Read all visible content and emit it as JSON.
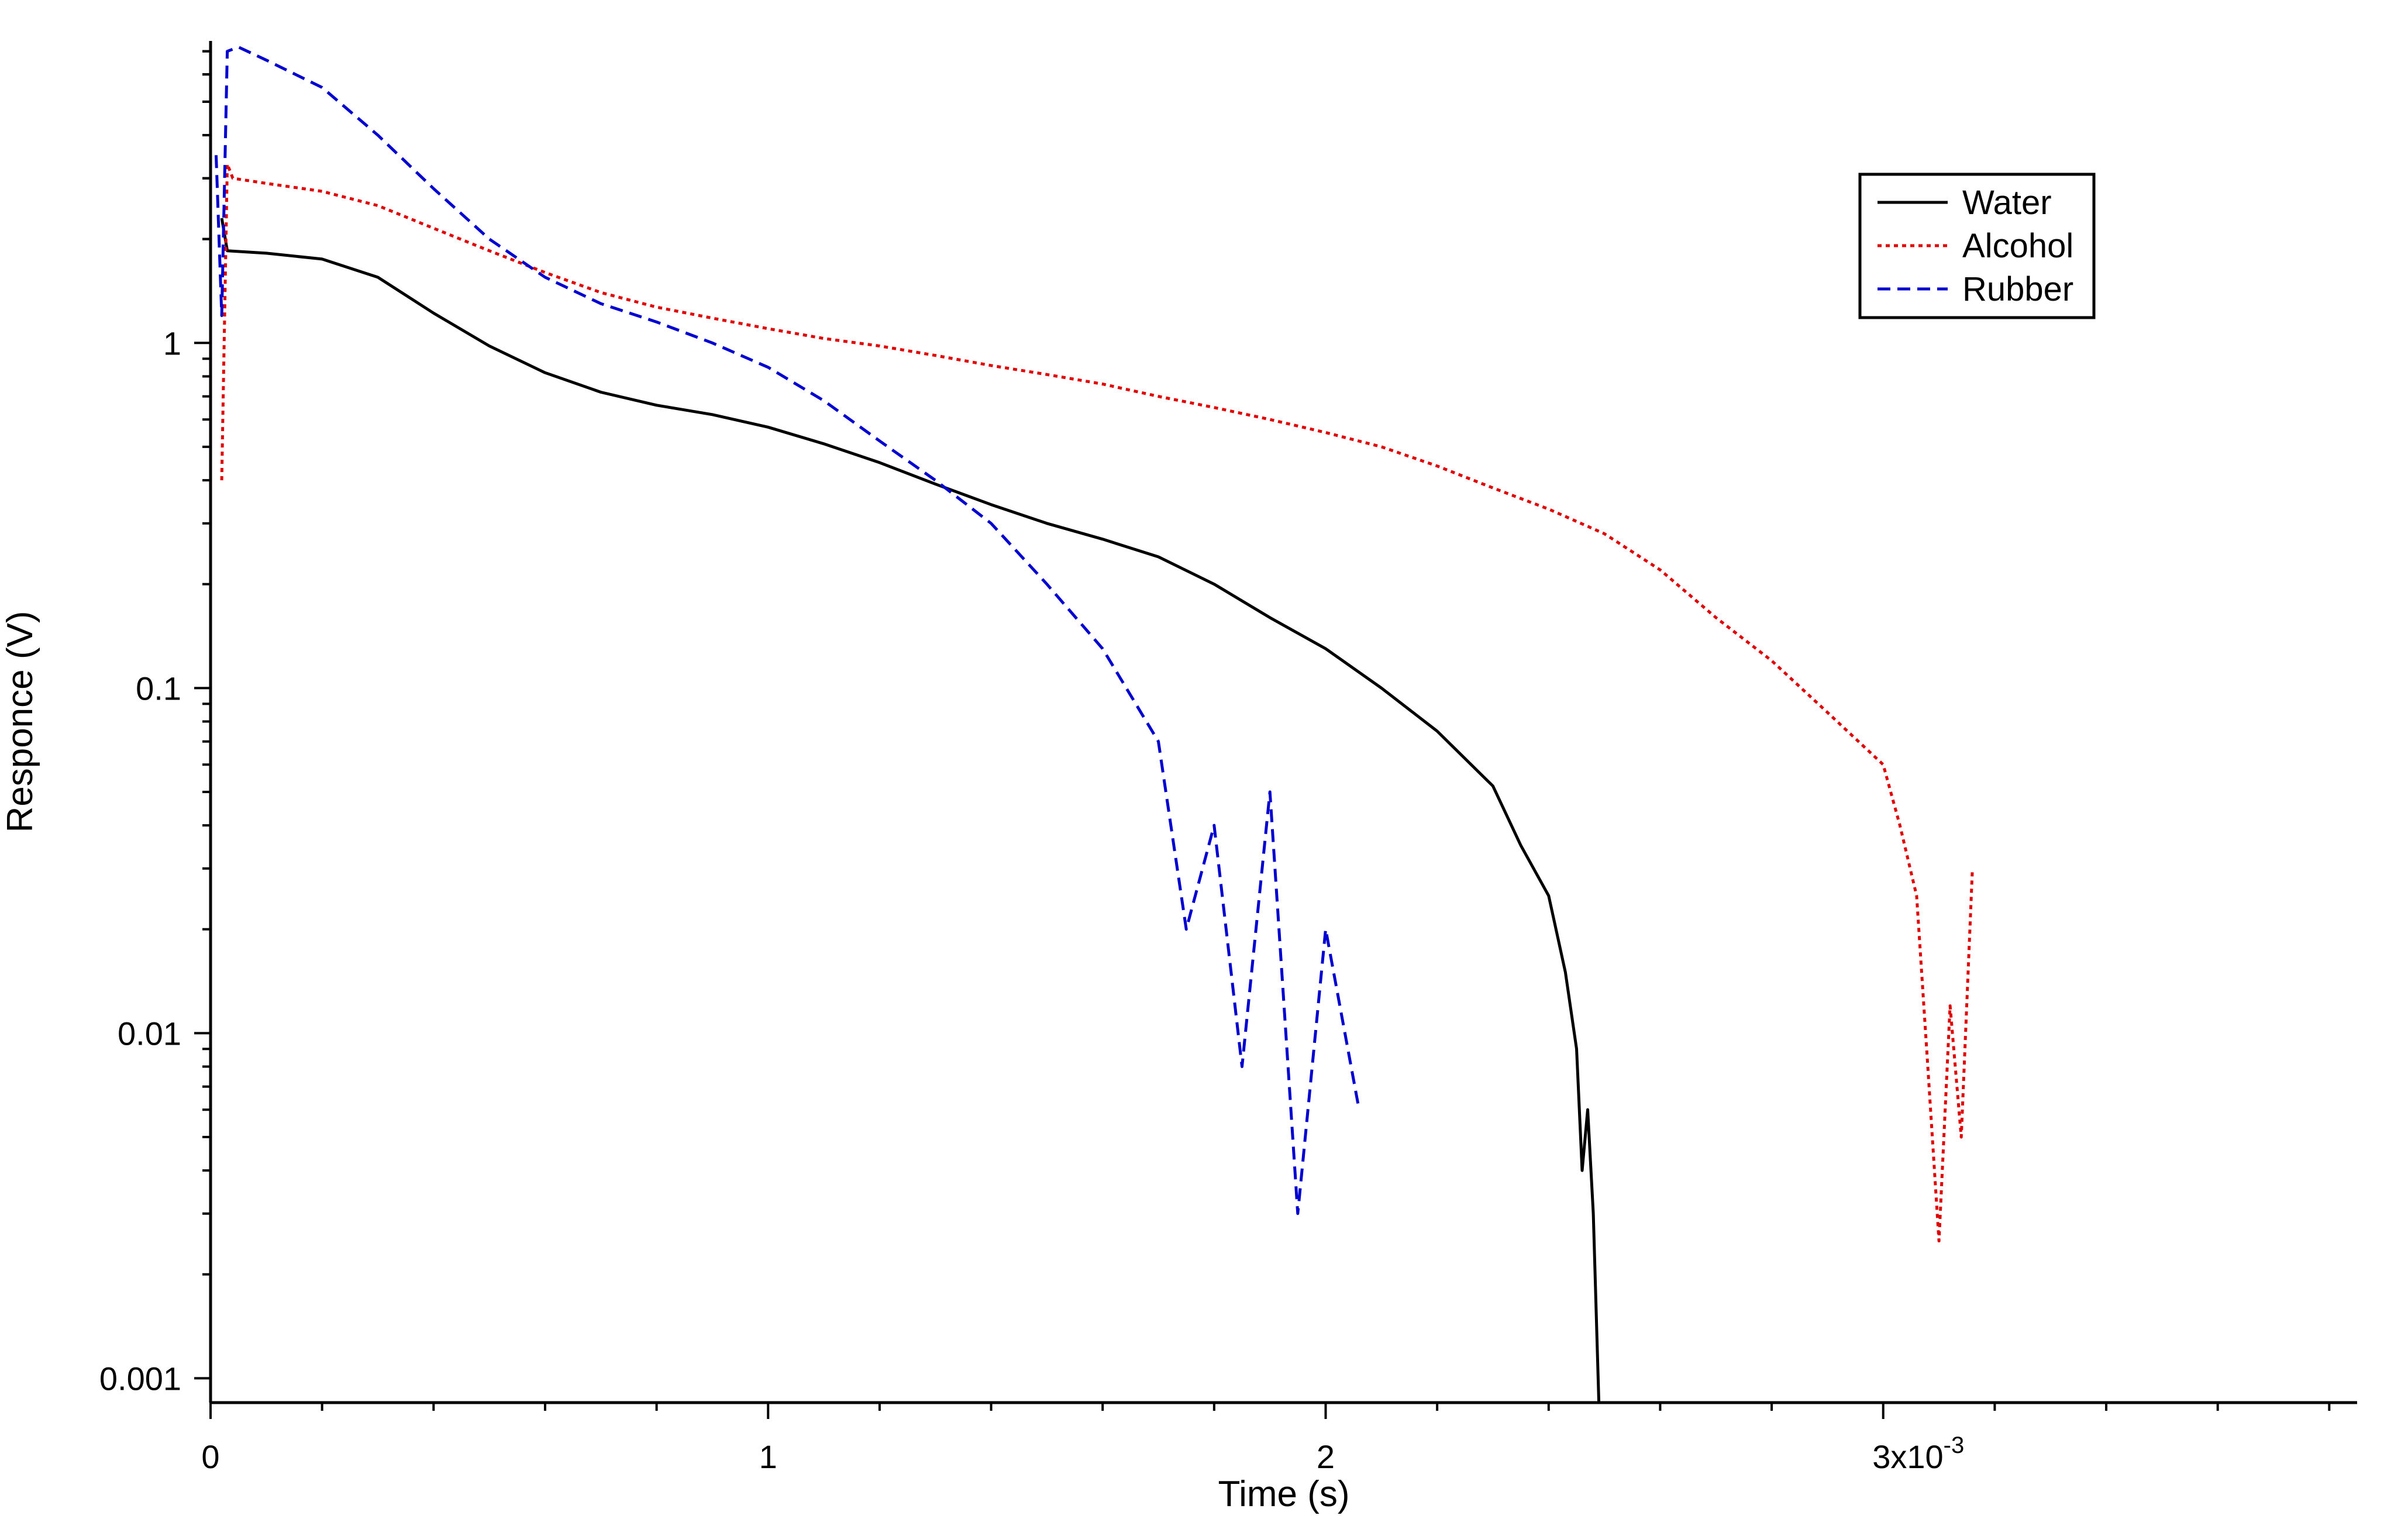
{
  "chart_data": {
    "type": "line",
    "title": "",
    "xlabel": "Time (s)",
    "ylabel": "Responce (V)",
    "x_scale": "linear",
    "y_scale": "log",
    "xlim": [
      0,
      0.00385
    ],
    "ylim": [
      0.00085,
      7.5
    ],
    "grid": false,
    "legend_position": "top-right",
    "x_ticks": [
      {
        "value": 0,
        "label": "0"
      },
      {
        "value": 0.001,
        "label": "1"
      },
      {
        "value": 0.002,
        "label": "2"
      },
      {
        "value": 0.003,
        "label": "3x10"
      }
    ],
    "x_tick_exponent": "-3",
    "y_ticks": [
      {
        "value": 0.001,
        "label": "0.001"
      },
      {
        "value": 0.01,
        "label": "0.01"
      },
      {
        "value": 0.1,
        "label": "0.1"
      },
      {
        "value": 1,
        "label": "1"
      }
    ],
    "series": [
      {
        "name": "Water",
        "color": "#000000",
        "style": "solid",
        "x": [
          2e-05,
          3e-05,
          0.0001,
          0.0002,
          0.0003,
          0.0004,
          0.0005,
          0.0006,
          0.0007,
          0.0008,
          0.0009,
          0.001,
          0.0011,
          0.0012,
          0.0013,
          0.0014,
          0.0015,
          0.0016,
          0.0017,
          0.0018,
          0.0019,
          0.002,
          0.0021,
          0.0022,
          0.0023,
          0.00235,
          0.0024,
          0.00243,
          0.00245,
          0.00246,
          0.00247,
          0.00248,
          0.00249
        ],
        "y": [
          2.3,
          1.85,
          1.82,
          1.75,
          1.55,
          1.22,
          0.98,
          0.82,
          0.72,
          0.66,
          0.62,
          0.57,
          0.51,
          0.45,
          0.39,
          0.34,
          0.3,
          0.27,
          0.24,
          0.2,
          0.16,
          0.13,
          0.1,
          0.075,
          0.052,
          0.035,
          0.025,
          0.015,
          0.009,
          0.004,
          0.006,
          0.003,
          0.00085
        ]
      },
      {
        "name": "Alcohol",
        "color": "#e00000",
        "style": "dotted",
        "x": [
          2e-05,
          3e-05,
          4e-05,
          0.0001,
          0.0002,
          0.0003,
          0.0004,
          0.0005,
          0.0006,
          0.0007,
          0.0008,
          0.0009,
          0.001,
          0.0011,
          0.0012,
          0.0013,
          0.0014,
          0.0015,
          0.0016,
          0.0017,
          0.0018,
          0.0019,
          0.002,
          0.0021,
          0.0022,
          0.0023,
          0.0024,
          0.0025,
          0.0026,
          0.0027,
          0.0028,
          0.0029,
          0.003,
          0.00303,
          0.00306,
          0.00308,
          0.0031,
          0.00312,
          0.00314,
          0.00316
        ],
        "y": [
          0.4,
          3.3,
          3.0,
          2.9,
          2.75,
          2.5,
          2.15,
          1.85,
          1.6,
          1.4,
          1.27,
          1.18,
          1.1,
          1.03,
          0.98,
          0.92,
          0.86,
          0.81,
          0.76,
          0.7,
          0.65,
          0.6,
          0.55,
          0.5,
          0.44,
          0.38,
          0.33,
          0.28,
          0.22,
          0.16,
          0.12,
          0.085,
          0.06,
          0.04,
          0.025,
          0.008,
          0.0025,
          0.012,
          0.005,
          0.03
        ]
      },
      {
        "name": "Rubber",
        "color": "#0000d0",
        "style": "dashed",
        "x": [
          1e-05,
          2e-05,
          3e-05,
          5e-05,
          0.0001,
          0.0002,
          0.0003,
          0.0004,
          0.0005,
          0.0006,
          0.0007,
          0.0008,
          0.0009,
          0.001,
          0.0011,
          0.0012,
          0.0013,
          0.0014,
          0.0015,
          0.0016,
          0.0017,
          0.00175,
          0.0018,
          0.00185,
          0.0019,
          0.00195,
          0.002,
          0.00206
        ],
        "y": [
          3.5,
          1.2,
          7.0,
          7.2,
          6.6,
          5.5,
          4.0,
          2.8,
          2.0,
          1.55,
          1.3,
          1.15,
          1.0,
          0.85,
          0.68,
          0.52,
          0.4,
          0.3,
          0.2,
          0.13,
          0.07,
          0.02,
          0.04,
          0.008,
          0.05,
          0.003,
          0.02,
          0.006
        ]
      }
    ]
  }
}
